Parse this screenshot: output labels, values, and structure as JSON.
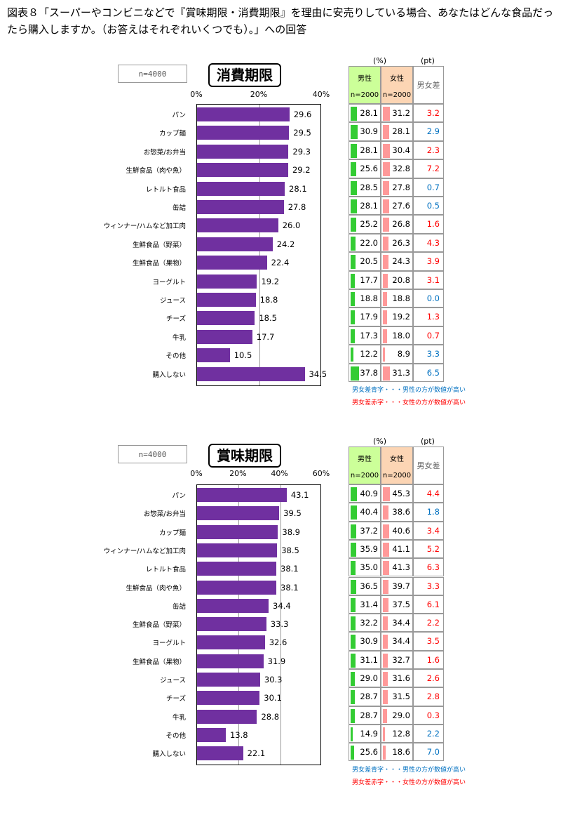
{
  "title": "図表８「スーパーやコンビニなどで『賞味期限・消費期限』を理由に安売りしている場合、あなたはどんな食品だったら購入しますか。（お答えはそれぞれいくつでも）。」への回答",
  "colors": {
    "bar": "#7030a0",
    "male": "#33cc33",
    "female": "#ff9999",
    "blue": "#0070c0",
    "red": "#ff0000"
  },
  "panels": [
    {
      "label": "消費期限",
      "n": "n=4000",
      "pct_unit": "(%)",
      "pt_unit": "(pt)",
      "header_male": "男性",
      "header_female": "女性",
      "header_n": "n=2000",
      "header_diff": "男女差",
      "note_blue": "男女差青字・・・男性の方が数値が高い",
      "note_red": "男女差赤字・・・女性の方が数値が高い",
      "chart_data": {
        "type": "bar",
        "orientation": "horizontal",
        "ylim": [
          0,
          40
        ],
        "ticks": [
          "0%",
          "20%",
          "40%"
        ],
        "categories": [
          "パン",
          "カップ麺",
          "お惣菜/お弁当",
          "生鮮食品（肉や魚）",
          "レトルト食品",
          "缶詰",
          "ウィンナー/ハムなど加工肉",
          "生鮮食品（野菜）",
          "生鮮食品（果物）",
          "ヨーグルト",
          "ジュース",
          "チーズ",
          "牛乳",
          "その他",
          "購入しない"
        ],
        "values": [
          29.6,
          29.5,
          29.3,
          29.2,
          28.1,
          27.8,
          26.0,
          24.2,
          22.4,
          19.2,
          18.8,
          18.5,
          17.7,
          10.5,
          34.5
        ],
        "male": [
          28.1,
          30.9,
          28.1,
          25.6,
          28.5,
          28.1,
          25.2,
          22.0,
          20.5,
          17.7,
          18.8,
          17.9,
          17.3,
          12.2,
          37.8
        ],
        "female": [
          31.2,
          28.1,
          30.4,
          32.8,
          27.8,
          27.6,
          26.8,
          26.3,
          24.3,
          20.8,
          18.8,
          19.2,
          18.0,
          8.9,
          31.3
        ],
        "diff": [
          "3.2",
          "2.9",
          "2.3",
          "7.2",
          "0.7",
          "0.5",
          "1.6",
          "4.3",
          "3.9",
          "3.1",
          "0.0",
          "1.3",
          "0.7",
          "3.3",
          "6.5"
        ],
        "diff_color": [
          "red",
          "blue",
          "red",
          "red",
          "blue",
          "blue",
          "red",
          "red",
          "red",
          "red",
          "blue",
          "red",
          "red",
          "blue",
          "blue"
        ]
      }
    },
    {
      "label": "賞味期限",
      "n": "n=4000",
      "pct_unit": "(%)",
      "pt_unit": "(pt)",
      "header_male": "男性",
      "header_female": "女性",
      "header_n": "n=2000",
      "header_diff": "男女差",
      "note_blue": "男女差青字・・・男性の方が数値が高い",
      "note_red": "男女差赤字・・・女性の方が数値が高い",
      "chart_data": {
        "type": "bar",
        "orientation": "horizontal",
        "ylim": [
          0,
          60
        ],
        "ticks": [
          "0%",
          "20%",
          "40%",
          "60%"
        ],
        "categories": [
          "パン",
          "お惣菜/お弁当",
          "カップ麺",
          "ウィンナー/ハムなど加工肉",
          "レトルト食品",
          "生鮮食品（肉や魚）",
          "缶詰",
          "生鮮食品（野菜）",
          "ヨーグルト",
          "生鮮食品（果物）",
          "ジュース",
          "チーズ",
          "牛乳",
          "その他",
          "購入しない"
        ],
        "values": [
          43.1,
          39.5,
          38.9,
          38.5,
          38.1,
          38.1,
          34.4,
          33.3,
          32.6,
          31.9,
          30.3,
          30.1,
          28.8,
          13.8,
          22.1
        ],
        "male": [
          40.9,
          40.4,
          37.2,
          35.9,
          35.0,
          36.5,
          31.4,
          32.2,
          30.9,
          31.1,
          29.0,
          28.7,
          28.7,
          14.9,
          25.6
        ],
        "female": [
          45.3,
          38.6,
          40.6,
          41.1,
          41.3,
          39.7,
          37.5,
          34.4,
          34.4,
          32.7,
          31.6,
          31.5,
          29.0,
          12.8,
          18.6
        ],
        "diff": [
          "4.4",
          "1.8",
          "3.4",
          "5.2",
          "6.3",
          "3.3",
          "6.1",
          "2.2",
          "3.5",
          "1.6",
          "2.6",
          "2.8",
          "0.3",
          "2.2",
          "7.0"
        ],
        "diff_color": [
          "red",
          "blue",
          "red",
          "red",
          "red",
          "red",
          "red",
          "red",
          "red",
          "red",
          "red",
          "red",
          "red",
          "blue",
          "blue"
        ]
      }
    }
  ]
}
